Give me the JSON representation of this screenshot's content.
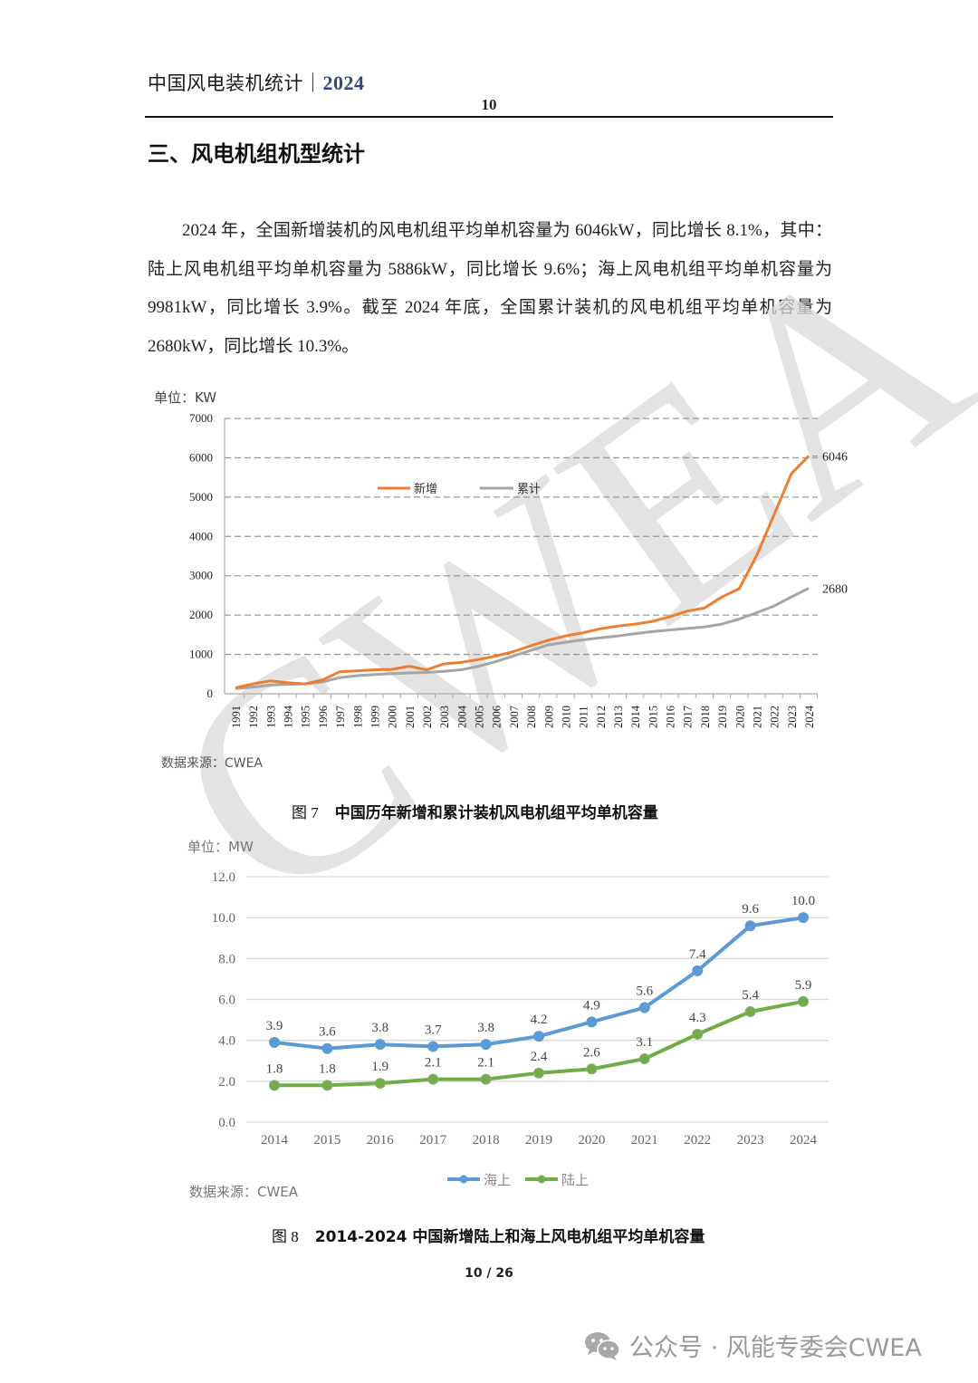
{
  "header": {
    "doc_title": "中国风电装机统计",
    "separator": "｜",
    "year": "2024",
    "page_number": "10"
  },
  "section": {
    "title": "三、风电机组机型统计"
  },
  "body": {
    "paragraph": "2024 年，全国新增装机的风电机组平均单机容量为 6046kW，同比增长 8.1%，其中：陆上风电机组平均单机容量为 5886kW，同比增长 9.6%；海上风电机组平均单机容量为 9981kW，同比增长 3.9%。截至 2024 年底，全国累计装机的风电机组平均单机容量为 2680kW，同比增长 10.3%。"
  },
  "figure7": {
    "unit_label": "单位：KW",
    "source_label": "数据来源：CWEA",
    "caption_num": "图 7",
    "caption_text": "中国历年新增和累计装机风电机组平均单机容量",
    "end_label_new": "6046",
    "end_label_cum": "2680"
  },
  "figure8": {
    "unit_label": "单位：MW",
    "source_label": "数据来源：CWEA",
    "caption_num": "图 8",
    "caption_text": "2014-2024 中国新增陆上和海上风电机组平均单机容量"
  },
  "footer": {
    "page_indicator": "10 / 26",
    "wechat_label": "公众号 · 风能专委会CWEA"
  },
  "colors": {
    "new": "#ED7D31",
    "cumulative": "#A5A5A5",
    "offshore": "#5B9BD5",
    "onshore": "#70AD47",
    "watermark": "#d9d9d9"
  },
  "chart_data": [
    {
      "type": "line",
      "title": "中国历年新增和累计装机风电机组平均单机容量",
      "xlabel": "",
      "ylabel": "单位：KW",
      "ylim": [
        0,
        7000
      ],
      "yticks": [
        0,
        1000,
        2000,
        3000,
        4000,
        5000,
        6000,
        7000
      ],
      "grid": "dashed horizontal",
      "legend_position": "top-center inside",
      "x": [
        1991,
        1992,
        1993,
        1994,
        1995,
        1996,
        1997,
        1998,
        1999,
        2000,
        2001,
        2002,
        2003,
        2004,
        2005,
        2006,
        2007,
        2008,
        2009,
        2010,
        2011,
        2012,
        2013,
        2014,
        2015,
        2016,
        2017,
        2018,
        2019,
        2020,
        2021,
        2022,
        2023,
        2024
      ],
      "series": [
        {
          "name": "新增",
          "values": [
            150,
            250,
            330,
            280,
            250,
            350,
            560,
            580,
            610,
            620,
            700,
            610,
            760,
            800,
            870,
            960,
            1070,
            1220,
            1360,
            1470,
            1550,
            1650,
            1720,
            1770,
            1840,
            1960,
            2100,
            2180,
            2460,
            2670,
            3510,
            4540,
            5590,
            6046
          ]
        },
        {
          "name": "累计",
          "values": [
            130,
            170,
            220,
            240,
            250,
            300,
            410,
            460,
            490,
            510,
            530,
            540,
            570,
            610,
            700,
            820,
            960,
            1100,
            1240,
            1310,
            1370,
            1420,
            1470,
            1530,
            1580,
            1620,
            1660,
            1700,
            1770,
            1900,
            2060,
            2230,
            2460,
            2680
          ]
        }
      ],
      "annotations": [
        "6046",
        "2680"
      ]
    },
    {
      "type": "line",
      "title": "2014-2024 中国新增陆上和海上风电机组平均单机容量",
      "xlabel": "",
      "ylabel": "单位：MW",
      "ylim": [
        0,
        12
      ],
      "yticks": [
        "0.0",
        "2.0",
        "4.0",
        "6.0",
        "8.0",
        "10.0",
        "12.0"
      ],
      "grid": "solid horizontal",
      "legend_position": "bottom",
      "categories": [
        "2014",
        "2015",
        "2016",
        "2017",
        "2018",
        "2019",
        "2020",
        "2021",
        "2022",
        "2023",
        "2024"
      ],
      "series": [
        {
          "name": "海上",
          "values": [
            3.9,
            3.6,
            3.8,
            3.7,
            3.8,
            4.2,
            4.9,
            5.6,
            7.4,
            9.6,
            10.0
          ]
        },
        {
          "name": "陆上",
          "values": [
            1.8,
            1.8,
            1.9,
            2.1,
            2.1,
            2.4,
            2.6,
            3.1,
            4.3,
            5.4,
            5.9
          ]
        }
      ]
    }
  ]
}
